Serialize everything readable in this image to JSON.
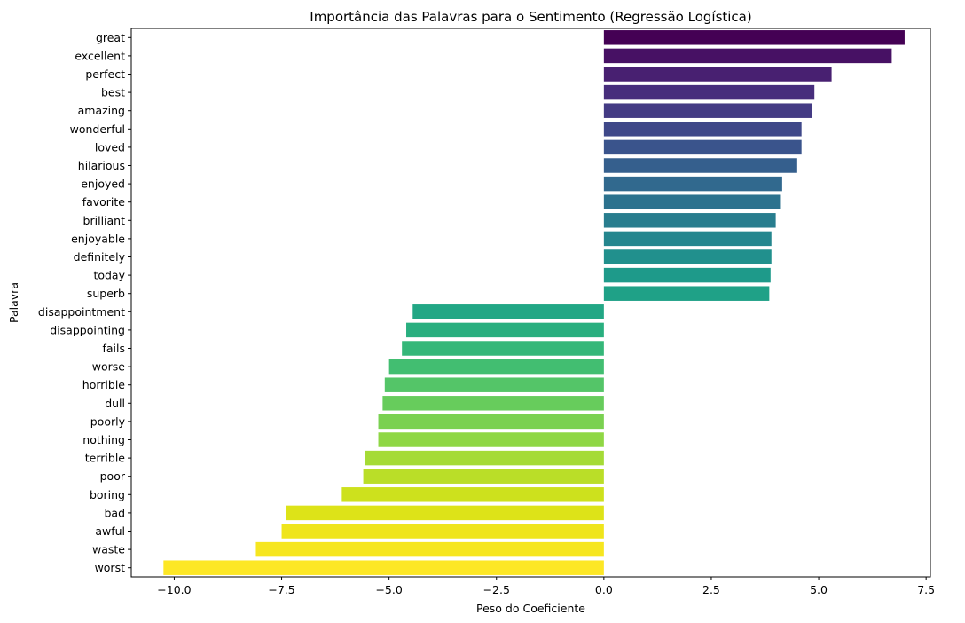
{
  "chart_data": {
    "type": "bar",
    "orientation": "horizontal",
    "title": "Importância das Palavras para o Sentimento (Regressão Logística)",
    "xlabel": "Peso do Coeficiente",
    "ylabel": "Palavra",
    "xlim": [
      -11.0,
      7.6
    ],
    "xticks": [
      {
        "value": -10.0,
        "label": "−10.0"
      },
      {
        "value": -7.5,
        "label": "−7.5"
      },
      {
        "value": -5.0,
        "label": "−5.0"
      },
      {
        "value": -2.5,
        "label": "−2.5"
      },
      {
        "value": 0.0,
        "label": "0.0"
      },
      {
        "value": 2.5,
        "label": "2.5"
      },
      {
        "value": 5.0,
        "label": "5.0"
      },
      {
        "value": 7.5,
        "label": "7.5"
      }
    ],
    "grid": false,
    "colormap": "viridis",
    "categories": [
      "great",
      "excellent",
      "perfect",
      "best",
      "amazing",
      "wonderful",
      "loved",
      "hilarious",
      "enjoyed",
      "favorite",
      "brilliant",
      "enjoyable",
      "definitely",
      "today",
      "superb",
      "disappointment",
      "disappointing",
      "fails",
      "worse",
      "horrible",
      "dull",
      "poorly",
      "nothing",
      "terrible",
      "poor",
      "boring",
      "bad",
      "awful",
      "waste",
      "worst"
    ],
    "values": [
      7.0,
      6.7,
      5.3,
      4.9,
      4.85,
      4.6,
      4.6,
      4.5,
      4.15,
      4.1,
      4.0,
      3.9,
      3.9,
      3.88,
      3.85,
      -4.45,
      -4.6,
      -4.7,
      -5.0,
      -5.1,
      -5.15,
      -5.25,
      -5.25,
      -5.55,
      -5.6,
      -6.1,
      -7.4,
      -7.5,
      -8.1,
      -10.25
    ],
    "colors": [
      "#440154",
      "#471164",
      "#482071",
      "#472e7c",
      "#443b84",
      "#3f4889",
      "#3a548c",
      "#355f8d",
      "#31698e",
      "#2c728e",
      "#287d8e",
      "#25868e",
      "#21908d",
      "#1e9a8a",
      "#1fa187",
      "#22a785",
      "#29af7f",
      "#35b779",
      "#42be71",
      "#54c568",
      "#67cc5c",
      "#7ad151",
      "#8fd744",
      "#a5db36",
      "#bade28",
      "#cde11d",
      "#dde318",
      "#efe51c",
      "#f6e620",
      "#fde725"
    ]
  }
}
